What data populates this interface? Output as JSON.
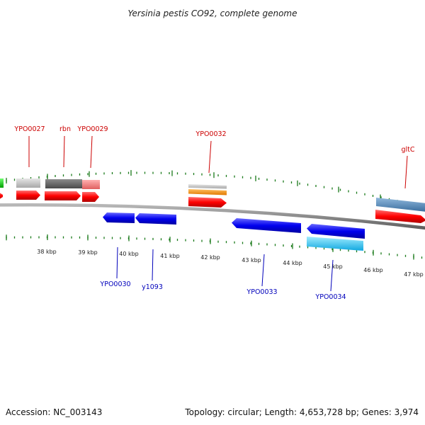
{
  "title": "Yersinia pestis CO92, complete genome",
  "accession": "Accession: NC_003143",
  "summary": "Topology: circular; Length: 4,653,728 bp; Genes: 3,974",
  "scale_labels": [
    "38 kbp",
    "39 kbp",
    "40 kbp",
    "41 kbp",
    "42 kbp",
    "43 kbp",
    "44 kbp",
    "45 kbp",
    "46 kbp",
    "47 kbp"
  ],
  "forward_genes": [
    "YPO0027",
    "rbn",
    "YPO0029",
    "YPO0032",
    "gltC"
  ],
  "reverse_genes": [
    "YPO0030",
    "y1093",
    "YPO0033",
    "YPO0034"
  ],
  "colors": {
    "forward_label": "#cc0000",
    "reverse_label": "#0000bb",
    "forward_cds": "#ff0000",
    "reverse_cds": "#0000ee",
    "tick": "#1a7a1a",
    "backbone": "#808080"
  }
}
